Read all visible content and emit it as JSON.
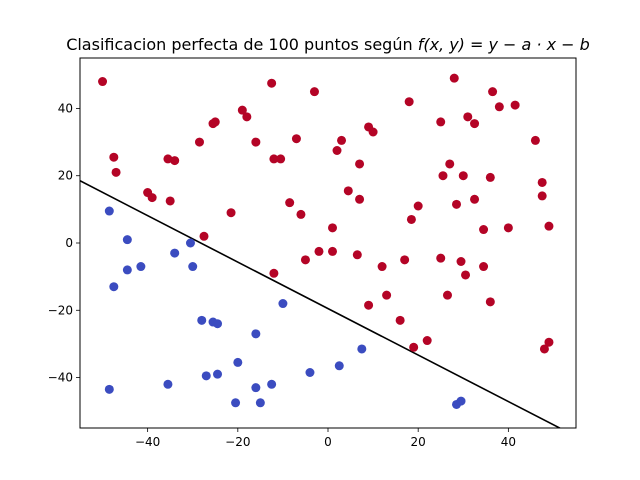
{
  "chart_data": {
    "type": "scatter",
    "title": "Clasificacion perfecta de 100 puntos según",
    "title_math": "f(x, y) = y − a · x − b",
    "xlim": [
      -55,
      55
    ],
    "ylim": [
      -55,
      55
    ],
    "x_ticks": [
      -40,
      -20,
      0,
      20,
      40
    ],
    "y_ticks": [
      -40,
      -20,
      0,
      20,
      40
    ],
    "x_tick_labels": [
      "−40",
      "−20",
      "0",
      "20",
      "40"
    ],
    "y_tick_labels": [
      "−40",
      "−20",
      "0",
      "20",
      "40"
    ],
    "grid": false,
    "colors": {
      "positive": "#b40426",
      "negative": "#3b4cc0",
      "line": "#000000"
    },
    "decision_line": {
      "x": [
        -55,
        55
      ],
      "y": [
        18.5,
        -57.5
      ]
    },
    "series": [
      {
        "class": "positive",
        "color": "#b40426",
        "points": [
          [
            -50.0,
            48.0
          ],
          [
            -47.5,
            25.5
          ],
          [
            -47.0,
            21.0
          ],
          [
            -40.0,
            15.0
          ],
          [
            -39.0,
            13.5
          ],
          [
            -35.5,
            25.0
          ],
          [
            -35.0,
            12.5
          ],
          [
            -34.0,
            24.5
          ],
          [
            -28.5,
            30.0
          ],
          [
            -27.5,
            2.0
          ],
          [
            -21.5,
            9.0
          ],
          [
            -19.0,
            39.5
          ],
          [
            -18.0,
            37.5
          ],
          [
            -16.0,
            30.0
          ],
          [
            -25.5,
            35.5
          ],
          [
            -25.0,
            36.0
          ],
          [
            -12.5,
            47.5
          ],
          [
            -12.0,
            25.0
          ],
          [
            -10.5,
            25.0
          ],
          [
            -12.0,
            -9.0
          ],
          [
            -8.5,
            12.0
          ],
          [
            -7.0,
            31.0
          ],
          [
            -6.0,
            8.5
          ],
          [
            -5.0,
            -5.0
          ],
          [
            -3.0,
            45.0
          ],
          [
            -2.0,
            -2.5
          ],
          [
            1.0,
            4.5
          ],
          [
            1.0,
            -2.5
          ],
          [
            2.0,
            27.5
          ],
          [
            3.0,
            30.5
          ],
          [
            4.5,
            15.5
          ],
          [
            6.5,
            -3.5
          ],
          [
            7.0,
            23.5
          ],
          [
            7.0,
            13.0
          ],
          [
            9.0,
            34.5
          ],
          [
            9.0,
            -18.5
          ],
          [
            10.0,
            33.0
          ],
          [
            12.0,
            -7.0
          ],
          [
            13.0,
            -15.5
          ],
          [
            16.0,
            -23.0
          ],
          [
            17.0,
            -5.0
          ],
          [
            18.0,
            42.0
          ],
          [
            18.5,
            7.0
          ],
          [
            20.0,
            11.0
          ],
          [
            19.0,
            -31.0
          ],
          [
            22.0,
            -29.0
          ],
          [
            25.0,
            36.0
          ],
          [
            25.5,
            20.0
          ],
          [
            25.0,
            -4.5
          ],
          [
            26.5,
            -15.5
          ],
          [
            27.0,
            23.5
          ],
          [
            28.0,
            49.0
          ],
          [
            28.5,
            11.5
          ],
          [
            29.5,
            -5.5
          ],
          [
            30.0,
            20.0
          ],
          [
            30.5,
            -9.5
          ],
          [
            31.0,
            37.5
          ],
          [
            32.5,
            35.5
          ],
          [
            32.5,
            13.0
          ],
          [
            34.5,
            4.0
          ],
          [
            34.5,
            -7.0
          ],
          [
            36.0,
            19.5
          ],
          [
            36.0,
            -17.5
          ],
          [
            36.5,
            45.0
          ],
          [
            38.0,
            40.5
          ],
          [
            40.0,
            4.5
          ],
          [
            41.5,
            41.0
          ],
          [
            46.0,
            30.5
          ],
          [
            47.5,
            18.0
          ],
          [
            47.5,
            14.0
          ],
          [
            48.0,
            -31.5
          ],
          [
            49.0,
            -29.5
          ],
          [
            49.0,
            5.0
          ]
        ]
      },
      {
        "class": "negative",
        "color": "#3b4cc0",
        "points": [
          [
            -48.5,
            9.5
          ],
          [
            -48.5,
            -43.5
          ],
          [
            -47.5,
            -13.0
          ],
          [
            -44.5,
            1.0
          ],
          [
            -44.5,
            -8.0
          ],
          [
            -41.5,
            -7.0
          ],
          [
            -35.5,
            -42.0
          ],
          [
            -34.0,
            -3.0
          ],
          [
            -30.5,
            0.0
          ],
          [
            -30.0,
            -7.0
          ],
          [
            -28.0,
            -23.0
          ],
          [
            -27.0,
            -39.5
          ],
          [
            -25.5,
            -23.5
          ],
          [
            -24.5,
            -24.0
          ],
          [
            -24.5,
            -39.0
          ],
          [
            -20.0,
            -35.5
          ],
          [
            -20.5,
            -47.5
          ],
          [
            -16.0,
            -27.0
          ],
          [
            -16.0,
            -43.0
          ],
          [
            -15.0,
            -47.5
          ],
          [
            -12.5,
            -42.0
          ],
          [
            -10.0,
            -18.0
          ],
          [
            -4.0,
            -38.5
          ],
          [
            2.5,
            -36.5
          ],
          [
            7.5,
            -31.5
          ],
          [
            28.5,
            -48.0
          ],
          [
            29.5,
            -47.0
          ]
        ]
      }
    ]
  }
}
